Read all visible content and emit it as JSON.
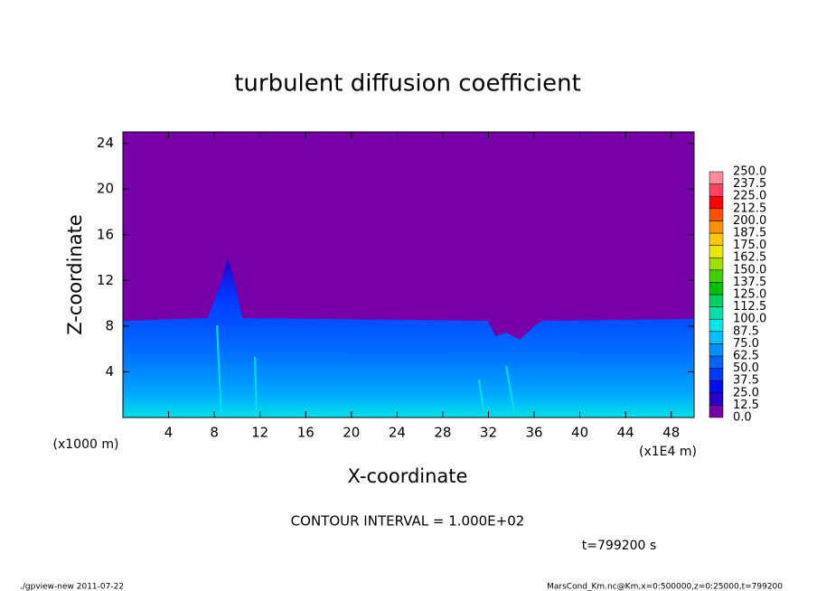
{
  "chart_data": {
    "type": "contour",
    "title": "turbulent diffusion coefficient",
    "x_label": "X-coordinate",
    "y_label": "Z-coordinate",
    "x_unit_left": "(x1000 m)",
    "x_unit_right": "(x1E4 m)",
    "xlim": [
      0,
      50
    ],
    "xticks": [
      4,
      8,
      12,
      16,
      20,
      24,
      28,
      32,
      36,
      40,
      44,
      48
    ],
    "ylim": [
      0,
      25
    ],
    "yticks": [
      4,
      8,
      12,
      16,
      20,
      24
    ],
    "colorbar": {
      "levels": [
        {
          "value": 0,
          "label": "0.0"
        },
        12.5,
        {
          "value": 25,
          "label": "25.0"
        },
        37.5,
        {
          "value": 50,
          "label": "50.0"
        },
        62.5,
        {
          "value": 75,
          "label": "75.0"
        },
        87.5,
        {
          "value": 100,
          "label": "100.0"
        },
        112.5,
        {
          "value": 125,
          "label": "125.0"
        },
        137.5,
        {
          "value": 150,
          "label": "150.0"
        },
        162.5,
        {
          "value": 175,
          "label": "175.0"
        },
        187.5,
        {
          "value": 200,
          "label": "200.0"
        },
        212.5,
        {
          "value": 225,
          "label": "225.0"
        },
        237.5,
        {
          "value": 250,
          "label": "250.0"
        }
      ],
      "colors": [
        "#7800a8",
        "#2a00c8",
        "#0010f0",
        "#0038ff",
        "#0064ff",
        "#0090ff",
        "#00c0ff",
        "#00e8e8",
        "#00e0a8",
        "#00d060",
        "#00c000",
        "#40d000",
        "#a0e000",
        "#e8e800",
        "#ffc800",
        "#ff9000",
        "#ff5000",
        "#ff0000",
        "#ff4060",
        "#ff8c9c"
      ]
    },
    "contour_interval": "CONTOUR INTERVAL = 1.000E+02",
    "time": "t=799200 s",
    "footer_left": "./gpview-new  2011-07-22",
    "footer_right": "MarsCond_Km.nc@Km,x=0:500000,z=0:25000,t=799200"
  }
}
